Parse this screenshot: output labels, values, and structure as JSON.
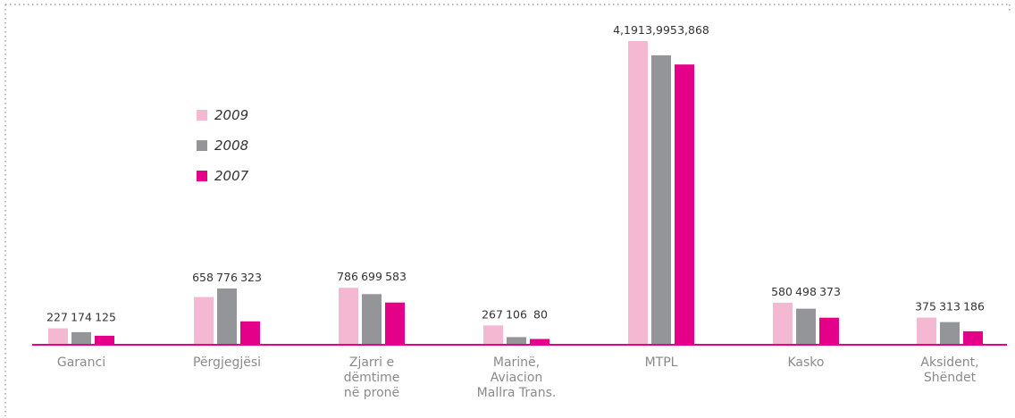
{
  "colors": {
    "series_2009": "#f4b8d2",
    "series_2008": "#939598",
    "series_2007": "#e5008a",
    "baseline": "#e5008a",
    "frame": "#a0a0a0",
    "value_text": "#333333",
    "category_text": "#8a8a8a"
  },
  "legend": {
    "items": [
      {
        "label": "2009"
      },
      {
        "label": "2008"
      },
      {
        "label": "2007"
      }
    ]
  },
  "chart_data": {
    "type": "bar",
    "categories": [
      [
        "Garanci"
      ],
      [
        "Përgjegjësi"
      ],
      [
        "Zjarri e",
        "dëmtime",
        "në pronë"
      ],
      [
        "Marinë,",
        "Aviacion",
        "Mallra Trans."
      ],
      [
        "MTPL"
      ],
      [
        "Kasko"
      ],
      [
        "Aksident,",
        "Shëndet"
      ]
    ],
    "series": [
      {
        "name": "2009",
        "values": [
          227,
          658,
          786,
          267,
          4191,
          580,
          375
        ],
        "labels": [
          "227",
          "658",
          "786",
          "267",
          "4,191",
          "580",
          "375"
        ]
      },
      {
        "name": "2008",
        "values": [
          174,
          776,
          699,
          106,
          3995,
          498,
          313
        ],
        "labels": [
          "174",
          "776",
          "699",
          "106",
          "3,995",
          "498",
          "313"
        ]
      },
      {
        "name": "2007",
        "values": [
          125,
          323,
          583,
          80,
          3868,
          373,
          186
        ],
        "labels": [
          "125",
          "323",
          "583",
          "80",
          "3,868",
          "373",
          "186"
        ]
      }
    ],
    "ylim": [
      0,
      4191
    ],
    "grid": false,
    "legend_position": "upper-left inside plot"
  }
}
